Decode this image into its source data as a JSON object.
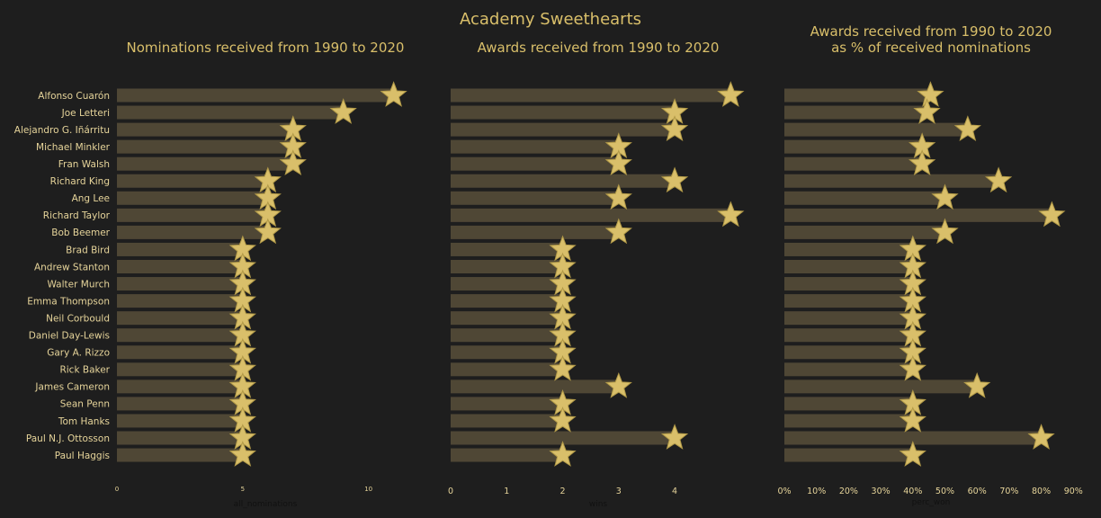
{
  "title": "Academy Sweethearts",
  "colors": {
    "background": "#1e1e1e",
    "bar": "#4f4735",
    "star": "#d9bf6a",
    "star_stroke": "#b29a48",
    "text": "#d9bf6a"
  },
  "chart_data": [
    {
      "type": "bar",
      "orientation": "horizontal",
      "title": "Nominations received from 1990 to 2020",
      "xlabel": "all_nominations",
      "xticks": [
        0,
        5,
        10
      ],
      "xlim": [
        0,
        11.8
      ],
      "categories": [
        "Alfonso Cuarón",
        "Joe Letteri",
        "Alejandro G. Iñárritu",
        "Michael Minkler",
        "Fran Walsh",
        "Richard King",
        "Ang Lee",
        "Richard Taylor",
        "Bob Beemer",
        "Brad Bird",
        "Andrew Stanton",
        "Walter Murch",
        "Emma Thompson",
        "Neil Corbould",
        "Daniel Day-Lewis",
        "Gary A. Rizzo",
        "Rick Baker",
        "James Cameron",
        "Sean Penn",
        "Tom Hanks",
        "Paul N.J. Ottosson",
        "Paul Haggis"
      ],
      "values": [
        11,
        9,
        7,
        7,
        7,
        6,
        6,
        6,
        6,
        5,
        5,
        5,
        5,
        5,
        5,
        5,
        5,
        5,
        5,
        5,
        5,
        5
      ]
    },
    {
      "type": "bar",
      "orientation": "horizontal",
      "title": "Awards received from 1990 to 2020",
      "xlabel": "wins",
      "xticks": [
        0,
        1,
        2,
        3,
        4
      ],
      "xlim": [
        0,
        5.3
      ],
      "categories": [
        "Alfonso Cuarón",
        "Joe Letteri",
        "Alejandro G. Iñárritu",
        "Michael Minkler",
        "Fran Walsh",
        "Richard King",
        "Ang Lee",
        "Richard Taylor",
        "Bob Beemer",
        "Brad Bird",
        "Andrew Stanton",
        "Walter Murch",
        "Emma Thompson",
        "Neil Corbould",
        "Daniel Day-Lewis",
        "Gary A. Rizzo",
        "Rick Baker",
        "James Cameron",
        "Sean Penn",
        "Tom Hanks",
        "Paul N.J. Ottosson",
        "Paul Haggis"
      ],
      "values": [
        5,
        4,
        4,
        3,
        3,
        4,
        3,
        5,
        3,
        2,
        2,
        2,
        2,
        2,
        2,
        2,
        2,
        3,
        2,
        2,
        4,
        2
      ]
    },
    {
      "type": "bar",
      "orientation": "horizontal",
      "title": "Awards received from 1990 to 2020\nas % of received nominations",
      "xlabel": "perc_won",
      "xticks": [
        0,
        10,
        20,
        30,
        40,
        50,
        60,
        70,
        80,
        90
      ],
      "xtick_suffix": "%",
      "xlim": [
        0,
        93
      ],
      "categories": [
        "Alfonso Cuarón",
        "Joe Letteri",
        "Alejandro G. Iñárritu",
        "Michael Minkler",
        "Fran Walsh",
        "Richard King",
        "Ang Lee",
        "Richard Taylor",
        "Bob Beemer",
        "Brad Bird",
        "Andrew Stanton",
        "Walter Murch",
        "Emma Thompson",
        "Neil Corbould",
        "Daniel Day-Lewis",
        "Gary A. Rizzo",
        "Rick Baker",
        "James Cameron",
        "Sean Penn",
        "Tom Hanks",
        "Paul N.J. Ottosson",
        "Paul Haggis"
      ],
      "values": [
        45.5,
        44.4,
        57.1,
        42.9,
        42.9,
        66.7,
        50,
        83.3,
        50,
        40,
        40,
        40,
        40,
        40,
        40,
        40,
        40,
        60,
        40,
        40,
        80,
        40
      ]
    }
  ]
}
